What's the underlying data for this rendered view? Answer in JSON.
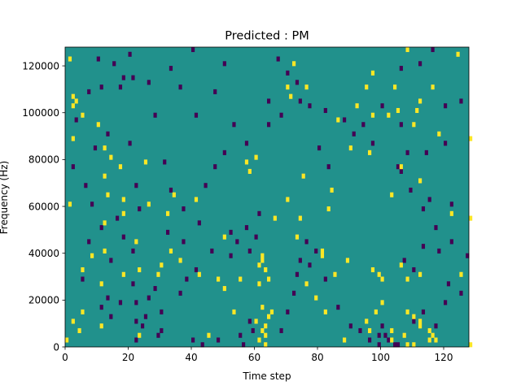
{
  "chart_data": {
    "type": "heatmap",
    "title": "Predicted : PM",
    "xlabel": "Time step",
    "ylabel": "Frequency (Hz)",
    "xlim": [
      0,
      128
    ],
    "ylim": [
      0,
      128000
    ],
    "xticks": [
      0,
      20,
      40,
      60,
      80,
      100,
      120
    ],
    "yticks": [
      0,
      20000,
      40000,
      60000,
      80000,
      100000,
      120000
    ],
    "grid": false,
    "colormap": "viridis",
    "levels": {
      "low": -1,
      "background": 0,
      "high": 1
    },
    "colors": {
      "low": "#440154",
      "background": "#21918c",
      "high": "#fde725"
    },
    "cell_height_hz": 2000,
    "high_cells": [
      [
        1,
        122000
      ],
      [
        2,
        106000
      ],
      [
        3,
        104000
      ],
      [
        2,
        102000
      ],
      [
        5,
        98000
      ],
      [
        10,
        94000
      ],
      [
        2,
        88000
      ],
      [
        12,
        84000
      ],
      [
        14,
        80000
      ],
      [
        25,
        78000
      ],
      [
        17,
        76000
      ],
      [
        12,
        72000
      ],
      [
        13,
        64000
      ],
      [
        34,
        64000
      ],
      [
        18,
        62000
      ],
      [
        26,
        60000
      ],
      [
        41,
        62000
      ],
      [
        1,
        60000
      ],
      [
        18,
        56000
      ],
      [
        32,
        56000
      ],
      [
        12,
        52000
      ],
      [
        50,
        46000
      ],
      [
        22,
        44000
      ],
      [
        12,
        40000
      ],
      [
        33,
        40000
      ],
      [
        62,
        38000
      ],
      [
        5,
        32000
      ],
      [
        29,
        30000
      ],
      [
        42,
        30000
      ],
      [
        11,
        26000
      ],
      [
        48,
        28000
      ],
      [
        62,
        36000
      ],
      [
        61,
        34000
      ],
      [
        64,
        28000
      ],
      [
        63,
        32000
      ],
      [
        61,
        26000
      ],
      [
        62,
        16000
      ],
      [
        64,
        12000
      ],
      [
        60,
        10000
      ],
      [
        63,
        8000
      ],
      [
        62,
        6000
      ],
      [
        61,
        2000
      ],
      [
        63,
        4000
      ],
      [
        63,
        0
      ],
      [
        65,
        14000
      ],
      [
        2,
        10000
      ],
      [
        5,
        14000
      ],
      [
        4,
        6000
      ],
      [
        11,
        8000
      ],
      [
        23,
        4000
      ],
      [
        45,
        4000
      ],
      [
        53,
        14000
      ],
      [
        66,
        54000
      ],
      [
        57,
        78000
      ],
      [
        58,
        74000
      ],
      [
        60,
        80000
      ],
      [
        71,
        106000
      ],
      [
        70,
        110000
      ],
      [
        76,
        110000
      ],
      [
        72,
        120000
      ],
      [
        86,
        96000
      ],
      [
        92,
        102000
      ],
      [
        97,
        98000
      ],
      [
        102,
        98000
      ],
      [
        110,
        94000
      ],
      [
        118,
        90000
      ],
      [
        124,
        124000
      ],
      [
        108,
        126000
      ],
      [
        97,
        116000
      ],
      [
        104,
        110000
      ],
      [
        111,
        100000
      ],
      [
        96,
        82000
      ],
      [
        106,
        76000
      ],
      [
        112,
        70000
      ],
      [
        103,
        64000
      ],
      [
        122,
        56000
      ],
      [
        128,
        54000
      ],
      [
        97,
        32000
      ],
      [
        106,
        34000
      ],
      [
        112,
        30000
      ],
      [
        100,
        18000
      ],
      [
        98,
        14000
      ],
      [
        108,
        14000
      ],
      [
        110,
        12000
      ],
      [
        112,
        8000
      ],
      [
        115,
        6000
      ],
      [
        115,
        2000
      ],
      [
        117,
        2000
      ],
      [
        110,
        0
      ],
      [
        108,
        0
      ],
      [
        107,
        4000
      ],
      [
        95,
        10000
      ],
      [
        96,
        6000
      ],
      [
        103,
        6000
      ],
      [
        103,
        2000
      ],
      [
        88,
        2000
      ],
      [
        82,
        14000
      ],
      [
        79,
        20000
      ],
      [
        76,
        26000
      ],
      [
        81,
        40000
      ],
      [
        73,
        46000
      ],
      [
        74,
        54000
      ],
      [
        83,
        58000
      ],
      [
        81,
        38000
      ],
      [
        85,
        30000
      ],
      [
        89,
        36000
      ],
      [
        100,
        28000
      ],
      [
        99,
        30000
      ],
      [
        108,
        28000
      ],
      [
        125,
        30000
      ],
      [
        112,
        10000
      ],
      [
        116,
        4000
      ],
      [
        50,
        24000
      ],
      [
        55,
        28000
      ],
      [
        30,
        34000
      ],
      [
        36,
        36000
      ],
      [
        23,
        32000
      ],
      [
        18,
        30000
      ],
      [
        8,
        38000
      ],
      [
        70,
        62000
      ],
      [
        75,
        72000
      ],
      [
        84,
        66000
      ],
      [
        90,
        84000
      ],
      [
        95,
        110000
      ],
      [
        105,
        100000
      ],
      [
        112,
        104000
      ],
      [
        116,
        110000
      ],
      [
        128,
        88000
      ],
      [
        128,
        0
      ],
      [
        0,
        2000
      ]
    ],
    "low_cells": [
      [
        10,
        122000
      ],
      [
        20,
        124000
      ],
      [
        40,
        126000
      ],
      [
        50,
        120000
      ],
      [
        67,
        122000
      ],
      [
        70,
        116000
      ],
      [
        73,
        112000
      ],
      [
        3,
        96000
      ],
      [
        28,
        98000
      ],
      [
        41,
        98000
      ],
      [
        36,
        110000
      ],
      [
        21,
        114000
      ],
      [
        18,
        114000
      ],
      [
        15,
        120000
      ],
      [
        7,
        108000
      ],
      [
        2,
        76000
      ],
      [
        20,
        86000
      ],
      [
        31,
        78000
      ],
      [
        22,
        68000
      ],
      [
        23,
        58000
      ],
      [
        16,
        54000
      ],
      [
        7,
        44000
      ],
      [
        5,
        28000
      ],
      [
        14,
        36000
      ],
      [
        17,
        18000
      ],
      [
        13,
        20000
      ],
      [
        21,
        26000
      ],
      [
        21,
        40000
      ],
      [
        37,
        44000
      ],
      [
        32,
        48000
      ],
      [
        60,
        46000
      ],
      [
        57,
        50000
      ],
      [
        58,
        40000
      ],
      [
        54,
        44000
      ],
      [
        52,
        48000
      ],
      [
        61,
        56000
      ],
      [
        41,
        32000
      ],
      [
        25,
        12000
      ],
      [
        22,
        18000
      ],
      [
        22,
        10000
      ],
      [
        26,
        20000
      ],
      [
        28,
        24000
      ],
      [
        22,
        2000
      ],
      [
        29,
        4000
      ],
      [
        30,
        6000
      ],
      [
        40,
        2000
      ],
      [
        43,
        0
      ],
      [
        48,
        2000
      ],
      [
        56,
        0
      ],
      [
        55,
        4000
      ],
      [
        59,
        6000
      ],
      [
        58,
        10000
      ],
      [
        68,
        6000
      ],
      [
        70,
        14000
      ],
      [
        72,
        22000
      ],
      [
        73,
        30000
      ],
      [
        74,
        36000
      ],
      [
        76,
        44000
      ],
      [
        77,
        34000
      ],
      [
        79,
        40000
      ],
      [
        82,
        28000
      ],
      [
        86,
        16000
      ],
      [
        90,
        8000
      ],
      [
        93,
        6000
      ],
      [
        96,
        2000
      ],
      [
        99,
        0
      ],
      [
        102,
        2000
      ],
      [
        104,
        0
      ],
      [
        105,
        0
      ],
      [
        100,
        8000
      ],
      [
        101,
        4000
      ],
      [
        99,
        4000
      ],
      [
        110,
        10000
      ],
      [
        113,
        14000
      ],
      [
        117,
        8000
      ],
      [
        120,
        18000
      ],
      [
        121,
        26000
      ],
      [
        125,
        22000
      ],
      [
        118,
        40000
      ],
      [
        113,
        42000
      ],
      [
        107,
        36000
      ],
      [
        110,
        32000
      ],
      [
        122,
        60000
      ],
      [
        115,
        62000
      ],
      [
        106,
        74000
      ],
      [
        108,
        82000
      ],
      [
        114,
        82000
      ],
      [
        120,
        86000
      ],
      [
        106,
        118000
      ],
      [
        112,
        120000
      ],
      [
        116,
        126000
      ],
      [
        125,
        104000
      ],
      [
        120,
        102000
      ],
      [
        106,
        94000
      ],
      [
        100,
        102000
      ],
      [
        94,
        94000
      ],
      [
        88,
        96000
      ],
      [
        82,
        100000
      ],
      [
        74,
        104000
      ],
      [
        68,
        98000
      ],
      [
        64,
        94000
      ],
      [
        57,
        86000
      ],
      [
        53,
        94000
      ],
      [
        50,
        82000
      ],
      [
        47,
        76000
      ],
      [
        44,
        68000
      ],
      [
        33,
        66000
      ],
      [
        37,
        58000
      ],
      [
        42,
        52000
      ],
      [
        46,
        40000
      ],
      [
        52,
        38000
      ],
      [
        38,
        28000
      ],
      [
        36,
        22000
      ],
      [
        30,
        14000
      ],
      [
        24,
        8000
      ],
      [
        14,
        12000
      ],
      [
        11,
        16000
      ],
      [
        18,
        46000
      ],
      [
        11,
        50000
      ],
      [
        8,
        60000
      ],
      [
        6,
        68000
      ],
      [
        9,
        84000
      ],
      [
        13,
        90000
      ],
      [
        11,
        110000
      ],
      [
        17,
        110000
      ],
      [
        26,
        112000
      ],
      [
        33,
        118000
      ],
      [
        47,
        108000
      ],
      [
        64,
        104000
      ],
      [
        77,
        102000
      ],
      [
        80,
        84000
      ],
      [
        83,
        76000
      ],
      [
        91,
        90000
      ],
      [
        97,
        86000
      ],
      [
        105,
        76000
      ],
      [
        109,
        66000
      ],
      [
        113,
        58000
      ],
      [
        117,
        50000
      ],
      [
        122,
        44000
      ],
      [
        127,
        38000
      ]
    ]
  }
}
